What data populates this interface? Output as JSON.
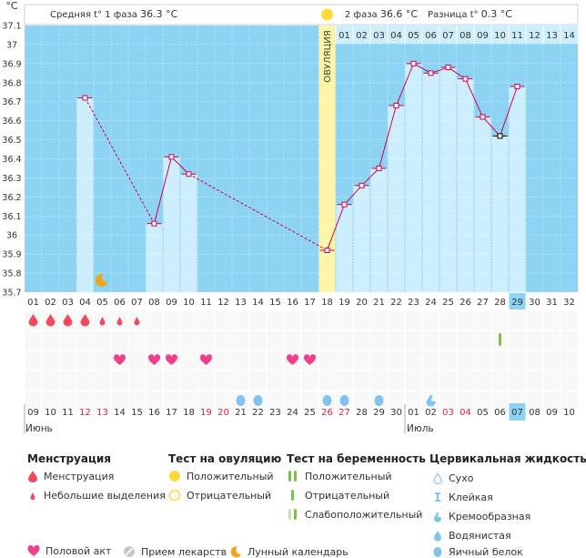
{
  "header": {
    "unit": "°C",
    "phase1_label": "Средняя t° 1 фаза",
    "phase1_value": "36.3 °C",
    "phase2_label": "2 фаза",
    "phase2_value": "36.6 °C",
    "diff_label": "Разница t°",
    "diff_value": "0.3 °C"
  },
  "ovulation_label": "ОВУЛЯЦИЯ",
  "colors": {
    "sky": "#8dd3f3",
    "bar": "#cdeefc",
    "ovulation": "#fdf5a8",
    "line": "#d4004d",
    "drop": "#f04a5c",
    "heart": "#f03f8f",
    "cervical": "#7fc4ec",
    "test_green": "#7dc242",
    "yellow_dot": "#ffd83a"
  },
  "chart_data": {
    "type": "bar",
    "ylabel": "°C",
    "ylim": [
      35.7,
      37.1
    ],
    "y_ticks": [
      "37.1",
      "37",
      "36.9",
      "36.8",
      "36.7",
      "36.6",
      "36.5",
      "36.4",
      "36.3",
      "36.2",
      "36.1",
      "36",
      "35.9",
      "35.8",
      "35.7"
    ],
    "cycle_days": [
      "01",
      "02",
      "03",
      "04",
      "05",
      "06",
      "07",
      "08",
      "09",
      "10",
      "11",
      "12",
      "13",
      "14",
      "15",
      "16",
      "17",
      "18",
      "19",
      "20",
      "21",
      "22",
      "23",
      "24",
      "25",
      "26",
      "27",
      "28",
      "29",
      "30",
      "31",
      "32"
    ],
    "dpo_labels": [
      "01",
      "02",
      "03",
      "04",
      "05",
      "06",
      "07",
      "08",
      "09",
      "10",
      "11",
      "12",
      "13",
      "14"
    ],
    "ovulation_day": 18,
    "today_day": 29,
    "temperatures": [
      {
        "day": 4,
        "value": 36.72
      },
      {
        "day": 8,
        "value": 36.06
      },
      {
        "day": 9,
        "value": 36.41
      },
      {
        "day": 10,
        "value": 36.32
      },
      {
        "day": 18,
        "value": 35.92
      },
      {
        "day": 19,
        "value": 36.16
      },
      {
        "day": 20,
        "value": 36.26
      },
      {
        "day": 21,
        "value": 36.35
      },
      {
        "day": 22,
        "value": 36.68
      },
      {
        "day": 23,
        "value": 36.9
      },
      {
        "day": 24,
        "value": 36.85
      },
      {
        "day": 25,
        "value": 36.88
      },
      {
        "day": 26,
        "value": 36.82
      },
      {
        "day": 27,
        "value": 36.62
      },
      {
        "day": 28,
        "value": 36.52
      },
      {
        "day": 29,
        "value": 36.78
      }
    ],
    "moon_day": 5,
    "menstruation": {
      "big": [
        1,
        2,
        3,
        4
      ],
      "small": [
        5,
        6,
        7
      ]
    },
    "pregnancy_test_weak_day": 28,
    "intercourse": [
      6,
      8,
      9,
      11,
      16,
      17
    ],
    "cervical_egg_white": [
      13,
      14,
      18,
      19,
      21
    ],
    "cervical_creamy": [
      24
    ],
    "calendar_dates": [
      "09",
      "10",
      "11",
      "12",
      "13",
      "14",
      "15",
      "16",
      "17",
      "18",
      "19",
      "20",
      "21",
      "22",
      "23",
      "24",
      "25",
      "26",
      "27",
      "28",
      "29",
      "30",
      "01",
      "02",
      "03",
      "04",
      "05",
      "06",
      "07",
      "08",
      "09",
      "10"
    ],
    "calendar_weekend_days": [
      4,
      5,
      11,
      12,
      18,
      19,
      25,
      26
    ],
    "month1": "Июнь",
    "month1_start_day": 1,
    "month2": "Июль",
    "month2_start_day": 23
  },
  "legend": {
    "menstruation": {
      "title": "Менструация",
      "items": [
        "Менструация",
        "Небольшие выделения"
      ]
    },
    "ovulation_test": {
      "title": "Тест на овуляцию",
      "items": [
        "Положительный",
        "Отрицательный"
      ]
    },
    "pregnancy_test": {
      "title": "Тест на беременность",
      "items": [
        "Положительный",
        "Отрицательный",
        "Слабоположительный"
      ]
    },
    "cervical": {
      "title": "Цервикальная жидкость",
      "items": [
        "Сухо",
        "Клейкая",
        "Кремообразная",
        "Водянистая",
        "Яичный белок"
      ]
    },
    "bottom": [
      "Половой акт",
      "Прием лекарств",
      "Лунный календарь"
    ]
  }
}
